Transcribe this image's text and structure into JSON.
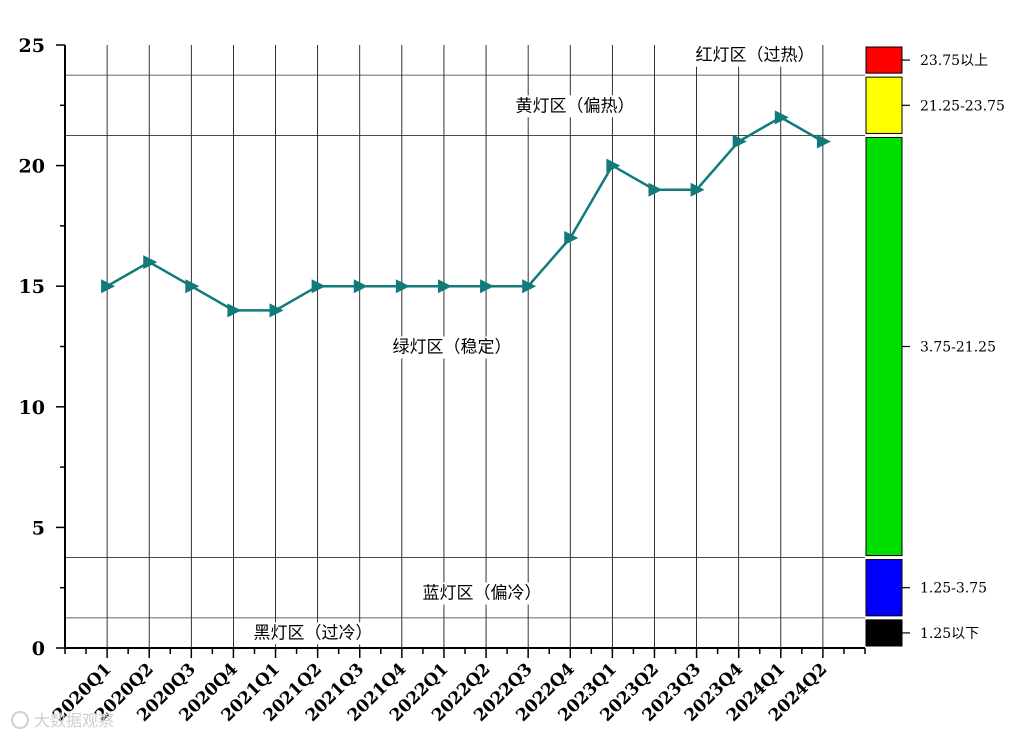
{
  "chart_data": {
    "type": "line",
    "categories": [
      "2020Q1",
      "2020Q2",
      "2020Q3",
      "2020Q4",
      "2021Q1",
      "2021Q2",
      "2021Q3",
      "2021Q4",
      "2022Q1",
      "2022Q2",
      "2022Q3",
      "2022Q4",
      "2023Q1",
      "2023Q2",
      "2023Q3",
      "2023Q4",
      "2024Q1",
      "2024Q2"
    ],
    "series": [
      {
        "values": [
          15,
          16,
          15,
          14,
          14,
          15,
          15,
          15,
          15,
          15,
          15,
          17,
          20,
          19,
          19,
          21,
          22,
          21
        ],
        "color": "#127a7a",
        "marker": "triangle-right"
      }
    ],
    "ylim": [
      0,
      25
    ],
    "yticks": [
      0,
      5,
      10,
      15,
      20,
      25
    ],
    "grid": "vertical",
    "thresholds": [
      1.25,
      3.75,
      21.25,
      23.75
    ],
    "zone_labels": [
      {
        "text": "红灯区（过热）",
        "y": 24.6
      },
      {
        "text": "黄灯区（偏热）",
        "y": 22.5
      },
      {
        "text": "绿灯区（稳定）",
        "y": 12.5
      },
      {
        "text": "蓝灯区（偏冷）",
        "y": 2.3
      },
      {
        "text": "黑灯区（过冷）",
        "y": 0.65
      }
    ],
    "legend": {
      "placement": "right",
      "items": [
        {
          "label": "23.75以上",
          "color": "#ff0000",
          "range": [
            23.75,
            25
          ]
        },
        {
          "label": "21.25-23.75",
          "color": "#ffff00",
          "range": [
            21.25,
            23.75
          ]
        },
        {
          "label": "3.75-21.25",
          "color": "#00e000",
          "range": [
            3.75,
            21.25
          ]
        },
        {
          "label": "1.25-3.75",
          "color": "#0000ff",
          "range": [
            1.25,
            3.75
          ]
        },
        {
          "label": "1.25以下",
          "color": "#000000",
          "range": [
            0,
            1.25
          ]
        }
      ]
    }
  },
  "watermark": "大数据观察"
}
